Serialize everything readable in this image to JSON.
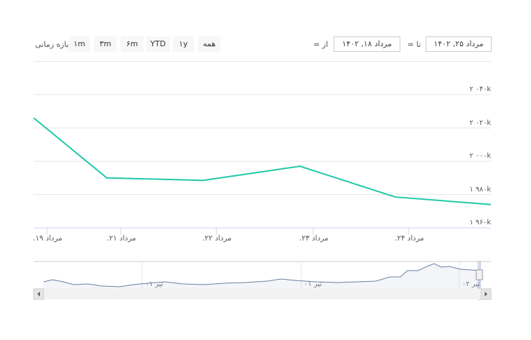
{
  "range_selector": {
    "label": "بازه زمانی",
    "buttons": [
      "۱m",
      "۳m",
      "۶m",
      "YTD",
      "۱y",
      "همه"
    ]
  },
  "date_inputs": {
    "from_label": "= از",
    "from_value": "مرداد ۱۸, ۱۴۰۲",
    "to_label": "= تا",
    "to_value": "مرداد ۲۵, ۱۴۰۲"
  },
  "colors": {
    "series": "#1ec8a8",
    "navigator": "#6a7fa0"
  },
  "navigator": {
    "labels": [
      "تیر ۰۱",
      "تیر ۰۱",
      "تیر ۰۲"
    ]
  },
  "chart_data": {
    "type": "line",
    "x": [
      "مرداد ۱۸",
      "مرداد ۲۱",
      "مرداد ۲۲",
      "مرداد ۲۳",
      "مرداد ۲۴",
      "مرداد ۲۵"
    ],
    "y": [
      2026000,
      1990000,
      1988500,
      1997000,
      1978500,
      1974000
    ],
    "ylim": [
      1960000,
      2040000
    ],
    "yticks": [
      {
        "v": 2040000,
        "label": "۲ ۰۴۰k"
      },
      {
        "v": 2020000,
        "label": "۲ ۰۲۰k"
      },
      {
        "v": 2000000,
        "label": "۲ ۰۰۰k"
      },
      {
        "v": 1980000,
        "label": "۱ ۹۸۰k"
      },
      {
        "v": 1960000,
        "label": "۱ ۹۶۰k"
      }
    ],
    "xticks": [
      "مرداد ۱۹.",
      "مرداد ۲۱.",
      "مرداد ۲۲.",
      "مرداد ۲۳.",
      "مرداد ۲۴."
    ],
    "grid": true
  }
}
